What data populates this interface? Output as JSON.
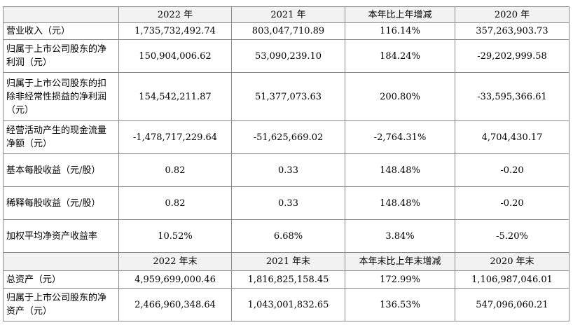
{
  "header1": [
    "",
    "2022 年",
    "2021 年",
    "本年比上年增减",
    "2020 年"
  ],
  "rows1": [
    {
      "label": "营业收入（元）",
      "values": [
        "1,735,732,492.74",
        "803,047,710.89",
        "116.14%",
        "357,263,903.73"
      ]
    },
    {
      "label": "归属于上市公司股东的净利润（元）",
      "values": [
        "150,904,006.62",
        "53,090,239.10",
        "184.24%",
        "-29,202,999.58"
      ]
    },
    {
      "label": "归属于上市公司股东的扣除非经常性损益的净利润（元）",
      "values": [
        "154,542,211.87",
        "51,377,073.63",
        "200.80%",
        "-33,595,366.61"
      ]
    },
    {
      "label": "经营活动产生的现金流量净额（元）",
      "values": [
        "-1,478,717,229.64",
        "-51,625,669.02",
        "-2,764.31%",
        "4,704,430.17"
      ]
    },
    {
      "label": "基本每股收益（元/股）",
      "values": [
        "0.82",
        "0.33",
        "148.48%",
        "-0.20"
      ]
    },
    {
      "label": "稀释每股收益（元/股）",
      "values": [
        "0.82",
        "0.33",
        "148.48%",
        "-0.20"
      ]
    },
    {
      "label": "加权平均净资产收益率",
      "values": [
        "10.52%",
        "6.68%",
        "3.84%",
        "-5.20%"
      ]
    }
  ],
  "header2": [
    "",
    "2022 年末",
    "2021 年末",
    "本年末比上年末增减",
    "2020 年末"
  ],
  "rows2": [
    {
      "label": "总资产（元）",
      "values": [
        "4,959,699,000.46",
        "1,816,825,158.45",
        "172.99%",
        "1,106,987,046.01"
      ]
    },
    {
      "label": "归属于上市公司股东的净资产（元）",
      "values": [
        "2,466,960,348.64",
        "1,043,001,832.65",
        "136.53%",
        "547,096,060.21"
      ]
    }
  ]
}
